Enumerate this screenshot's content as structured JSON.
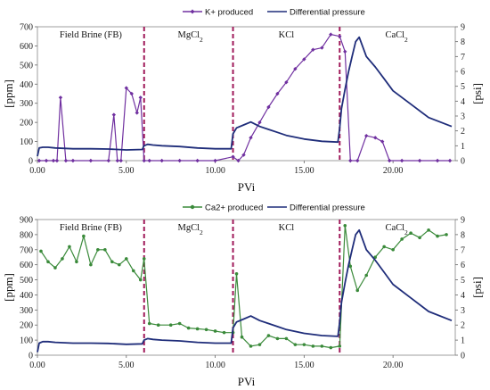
{
  "chart_data": [
    {
      "type": "line",
      "xlabel": "PVi",
      "ylabel": "[ppm]",
      "y2label": "[psi]",
      "xlim": [
        0,
        23.5
      ],
      "ylim": [
        0,
        700
      ],
      "y2lim": [
        0,
        9
      ],
      "x_ticks": [
        "0.00",
        "5.00",
        "10.00",
        "15.00",
        "20.00"
      ],
      "x_tick_values": [
        0,
        5,
        10,
        15,
        20
      ],
      "y_ticks": [
        "0",
        "100",
        "200",
        "300",
        "400",
        "500",
        "600",
        "700"
      ],
      "y2_ticks": [
        "0",
        "1",
        "2",
        "3",
        "4",
        "5",
        "6",
        "7",
        "8",
        "9"
      ],
      "regions": [
        {
          "label": "Field Brine (FB)",
          "sub": "",
          "x_center": 3.0
        },
        {
          "label": "MgCl",
          "sub": "2",
          "x_center": 8.6
        },
        {
          "label": "KCl",
          "sub": "",
          "x_center": 14.0
        },
        {
          "label": "CaCl",
          "sub": "2",
          "x_center": 20.2
        }
      ],
      "boundaries": [
        6.0,
        11.0,
        17.0
      ],
      "legend": {
        "placement": "top",
        "items": [
          "K+ produced",
          "Differential pressure"
        ]
      },
      "series": [
        {
          "name": "K+ produced",
          "axis": "left",
          "color": "#7030a0",
          "marker": "diamond",
          "x": [
            0.1,
            0.5,
            0.9,
            1.1,
            1.3,
            1.6,
            2.0,
            3.0,
            4.0,
            4.3,
            4.5,
            4.7,
            5.0,
            5.3,
            5.6,
            5.8,
            6.0,
            6.3,
            7.0,
            8.0,
            9.0,
            10.0,
            11.0,
            11.3,
            11.6,
            12.0,
            12.5,
            13.0,
            13.5,
            14.0,
            14.5,
            15.0,
            15.5,
            16.0,
            16.5,
            17.0,
            17.3,
            17.6,
            18.0,
            18.5,
            19.0,
            19.4,
            19.8,
            20.5,
            21.5,
            22.5,
            23.2
          ],
          "y": [
            0,
            0,
            0,
            0,
            330,
            0,
            0,
            0,
            0,
            240,
            0,
            0,
            380,
            350,
            250,
            330,
            0,
            0,
            0,
            0,
            0,
            0,
            20,
            0,
            30,
            120,
            200,
            280,
            350,
            410,
            480,
            530,
            580,
            590,
            660,
            650,
            570,
            0,
            0,
            130,
            120,
            100,
            0,
            0,
            0,
            0,
            0
          ]
        },
        {
          "name": "Differential pressure",
          "axis": "right",
          "color": "#1f2d7a",
          "marker": "none",
          "x": [
            0.0,
            0.1,
            0.3,
            0.6,
            1.0,
            2.0,
            3.0,
            4.0,
            5.0,
            5.9,
            6.0,
            6.2,
            6.5,
            7.0,
            8.0,
            9.0,
            10.0,
            10.9,
            11.0,
            11.2,
            11.6,
            12.0,
            12.5,
            13.0,
            13.5,
            14.0,
            15.0,
            16.0,
            16.9,
            17.0,
            17.1,
            17.3,
            17.5,
            17.7,
            17.9,
            18.1,
            18.5,
            19.0,
            19.5,
            20.0,
            21.0,
            22.0,
            23.3
          ],
          "y": [
            0.3,
            0.85,
            0.9,
            0.9,
            0.85,
            0.8,
            0.8,
            0.78,
            0.72,
            0.75,
            1.0,
            1.1,
            1.05,
            1.0,
            0.95,
            0.85,
            0.8,
            0.8,
            1.8,
            2.2,
            2.4,
            2.6,
            2.3,
            2.1,
            1.9,
            1.7,
            1.45,
            1.3,
            1.25,
            2.2,
            3.5,
            4.8,
            6.0,
            7.0,
            8.0,
            8.3,
            7.0,
            6.3,
            5.5,
            4.7,
            3.8,
            2.9,
            2.3
          ]
        }
      ]
    },
    {
      "type": "line",
      "xlabel": "PVi",
      "ylabel": "[ppm]",
      "y2label": "[psi]",
      "xlim": [
        0,
        23.5
      ],
      "ylim": [
        0,
        900
      ],
      "y2lim": [
        0,
        9
      ],
      "x_ticks": [
        "0.00",
        "5.00",
        "10.00",
        "15.00",
        "20.00"
      ],
      "x_tick_values": [
        0,
        5,
        10,
        15,
        20
      ],
      "y_ticks": [
        "0",
        "100",
        "200",
        "300",
        "400",
        "500",
        "600",
        "700",
        "800",
        "900"
      ],
      "y2_ticks": [
        "0",
        "1",
        "2",
        "3",
        "4",
        "5",
        "6",
        "7",
        "8",
        "9"
      ],
      "regions": [
        {
          "label": "Field Brine (FB)",
          "sub": "",
          "x_center": 3.0
        },
        {
          "label": "MgCl",
          "sub": "2",
          "x_center": 8.6
        },
        {
          "label": "KCl",
          "sub": "",
          "x_center": 14.0
        },
        {
          "label": "CaCl",
          "sub": "2",
          "x_center": 20.2
        }
      ],
      "boundaries": [
        6.0,
        11.0,
        17.0
      ],
      "legend": {
        "placement": "top",
        "items": [
          "Ca2+ produced",
          "Differential pressure"
        ]
      },
      "series": [
        {
          "name": "Ca2+ produced",
          "axis": "left",
          "color": "#3a8a3a",
          "marker": "circle",
          "x": [
            0.2,
            0.6,
            1.0,
            1.4,
            1.8,
            2.2,
            2.6,
            3.0,
            3.4,
            3.8,
            4.2,
            4.6,
            5.0,
            5.4,
            5.8,
            6.0,
            6.3,
            6.8,
            7.5,
            8.0,
            8.5,
            9.0,
            9.5,
            10.0,
            10.5,
            11.0,
            11.2,
            11.5,
            12.0,
            12.5,
            13.0,
            13.5,
            14.0,
            14.5,
            15.0,
            15.5,
            16.0,
            16.5,
            17.0,
            17.3,
            17.6,
            18.0,
            18.5,
            19.0,
            19.5,
            20.0,
            20.5,
            21.0,
            21.5,
            22.0,
            22.5,
            23.0
          ],
          "y": [
            690,
            620,
            580,
            640,
            720,
            620,
            790,
            600,
            700,
            700,
            620,
            600,
            640,
            560,
            500,
            640,
            210,
            200,
            200,
            210,
            180,
            175,
            170,
            160,
            150,
            150,
            540,
            120,
            60,
            70,
            130,
            110,
            110,
            70,
            70,
            60,
            60,
            50,
            60,
            860,
            590,
            430,
            530,
            650,
            720,
            700,
            770,
            810,
            780,
            830,
            790,
            800
          ]
        },
        {
          "name": "Differential pressure",
          "axis": "right",
          "color": "#1f2d7a",
          "marker": "none",
          "x": [
            0.0,
            0.1,
            0.3,
            0.6,
            1.0,
            2.0,
            3.0,
            4.0,
            5.0,
            5.9,
            6.0,
            6.2,
            6.5,
            7.0,
            8.0,
            9.0,
            10.0,
            10.9,
            11.0,
            11.2,
            11.6,
            12.0,
            12.5,
            13.0,
            13.5,
            14.0,
            15.0,
            16.0,
            16.9,
            17.0,
            17.1,
            17.3,
            17.5,
            17.7,
            17.9,
            18.1,
            18.5,
            19.0,
            19.5,
            20.0,
            21.0,
            22.0,
            23.3
          ],
          "y": [
            0.2,
            0.8,
            0.9,
            0.9,
            0.85,
            0.8,
            0.8,
            0.78,
            0.72,
            0.75,
            1.0,
            1.1,
            1.05,
            1.0,
            0.95,
            0.85,
            0.8,
            0.8,
            1.8,
            2.2,
            2.4,
            2.6,
            2.3,
            2.1,
            1.9,
            1.7,
            1.45,
            1.3,
            1.25,
            2.2,
            3.5,
            4.8,
            6.0,
            7.0,
            8.0,
            8.3,
            7.0,
            6.3,
            5.5,
            4.7,
            3.8,
            2.9,
            2.3
          ]
        }
      ]
    }
  ]
}
